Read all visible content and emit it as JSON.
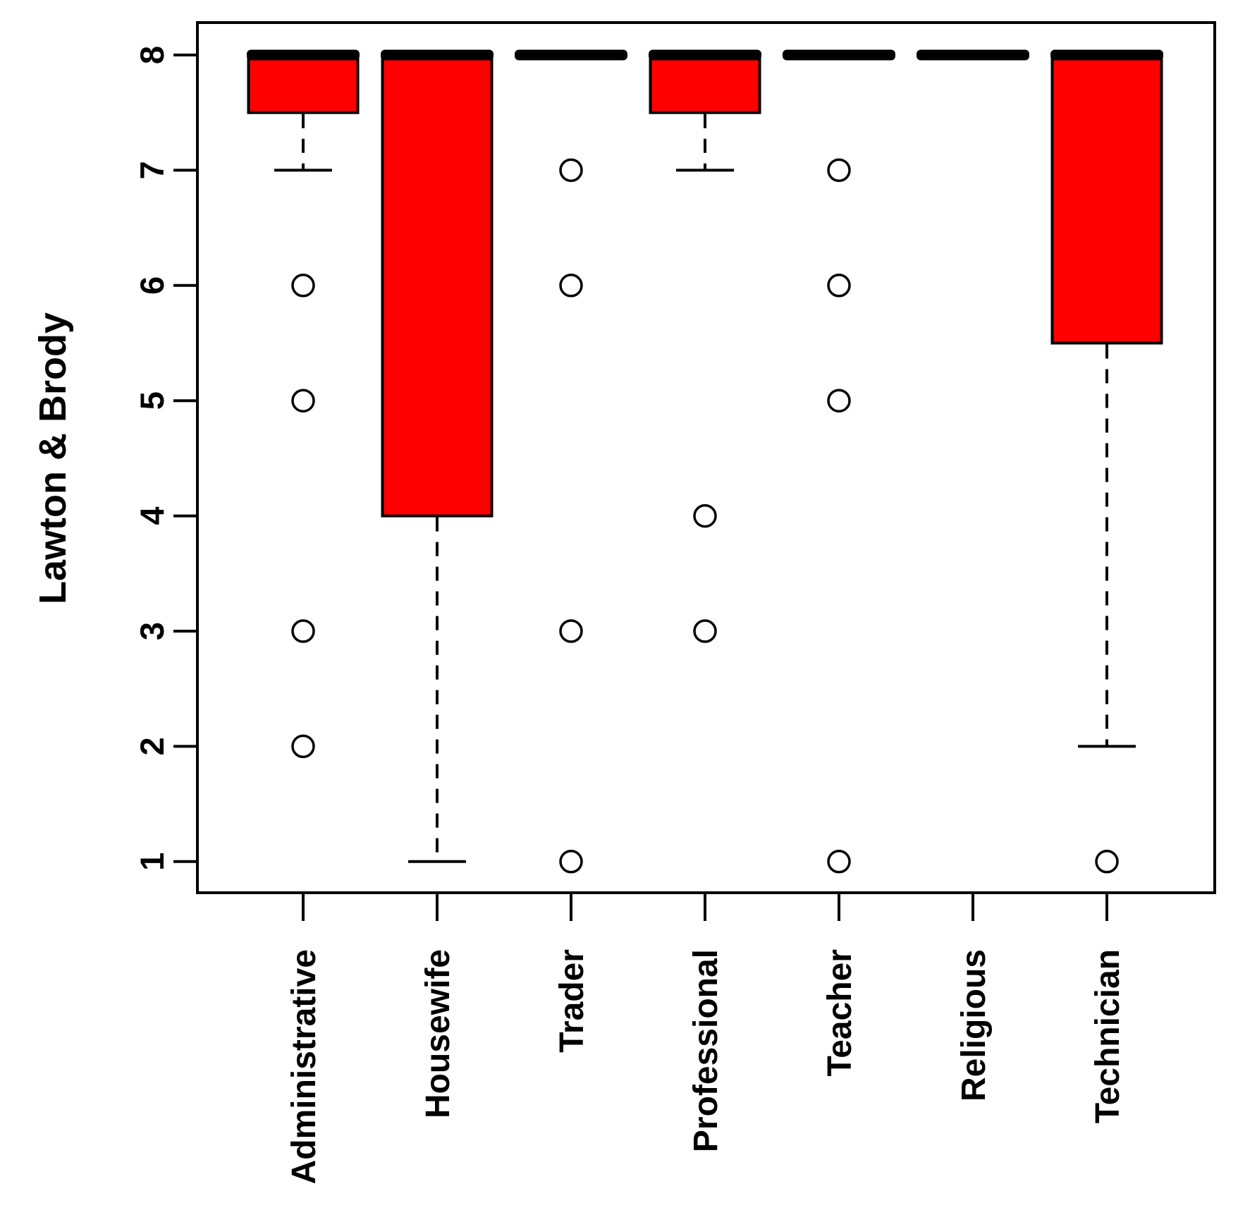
{
  "chart_data": {
    "type": "boxplot",
    "title": "",
    "xlabel": "",
    "ylabel": "Lawton & Brody",
    "y_ticks": [
      1,
      2,
      3,
      4,
      5,
      6,
      7,
      8
    ],
    "ylim": [
      1,
      8
    ],
    "grid": false,
    "legend": "none",
    "orientation": "vertical",
    "categories": [
      "Administrative",
      "Housewife",
      "Trader",
      "Professional",
      "Teacher",
      "Religious",
      "Technician"
    ],
    "series": [
      {
        "category": "Administrative",
        "q1": 7.5,
        "median": 8,
        "q3": 8,
        "whisker_low": 7,
        "whisker_high": 8,
        "outliers": [
          6,
          5,
          3,
          2
        ]
      },
      {
        "category": "Housewife",
        "q1": 4,
        "median": 8,
        "q3": 8,
        "whisker_low": 1,
        "whisker_high": 8,
        "outliers": []
      },
      {
        "category": "Trader",
        "q1": 8,
        "median": 8,
        "q3": 8,
        "whisker_low": 8,
        "whisker_high": 8,
        "outliers": [
          7,
          6,
          3,
          1
        ]
      },
      {
        "category": "Professional",
        "q1": 7.5,
        "median": 8,
        "q3": 8,
        "whisker_low": 7,
        "whisker_high": 8,
        "outliers": [
          4,
          3
        ]
      },
      {
        "category": "Teacher",
        "q1": 8,
        "median": 8,
        "q3": 8,
        "whisker_low": 8,
        "whisker_high": 8,
        "outliers": [
          7,
          6,
          5,
          1
        ]
      },
      {
        "category": "Religious",
        "q1": 8,
        "median": 8,
        "q3": 8,
        "whisker_low": 8,
        "whisker_high": 8,
        "outliers": []
      },
      {
        "category": "Technician",
        "q1": 5.5,
        "median": 8,
        "q3": 8,
        "whisker_low": 2,
        "whisker_high": 8,
        "outliers": [
          1
        ]
      }
    ],
    "colors": {
      "box_fill": "#ff0000",
      "line": "#000000",
      "background": "#ffffff"
    }
  }
}
